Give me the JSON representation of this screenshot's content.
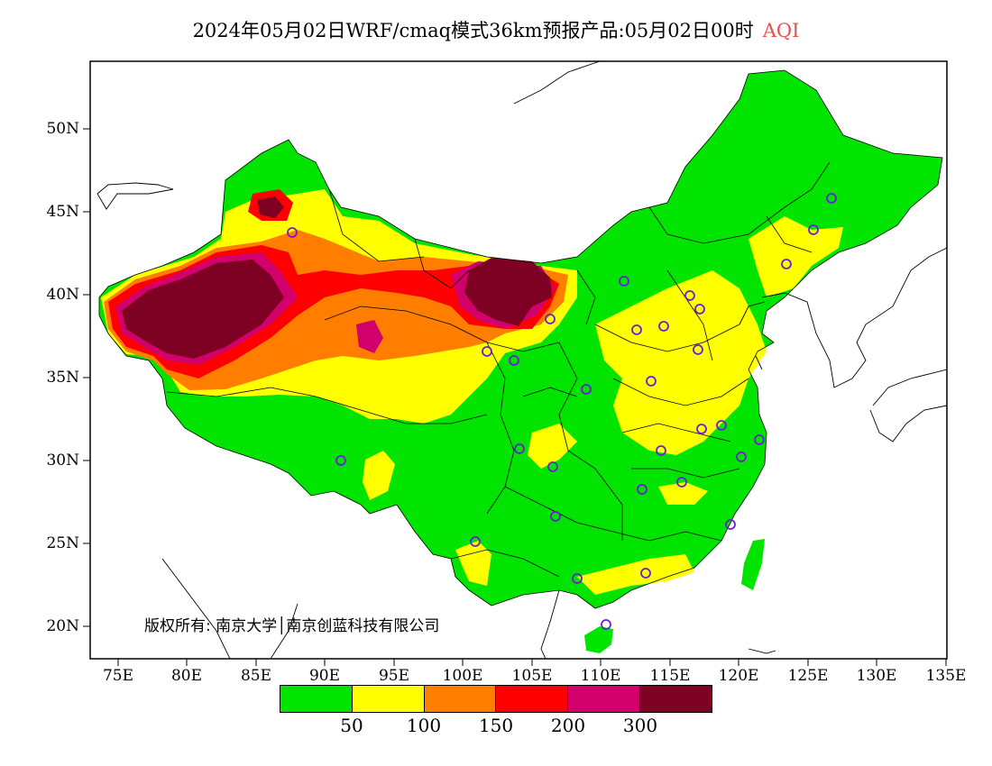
{
  "title": {
    "main": "2024年05月02日WRF/cmaq模式36km预报产品:05月02日00时",
    "variable": "AQI"
  },
  "axes": {
    "lat_ticks": [
      "50N",
      "45N",
      "40N",
      "35N",
      "30N",
      "25N",
      "20N"
    ],
    "lon_ticks": [
      "75E",
      "80E",
      "85E",
      "90E",
      "95E",
      "100E",
      "105E",
      "110E",
      "115E",
      "120E",
      "125E",
      "130E",
      "135E"
    ]
  },
  "copyright": "版权所有: 南京大学│南京创蓝科技有限公司",
  "legend": {
    "thresholds": [
      "50",
      "100",
      "150",
      "200",
      "300"
    ],
    "colors": [
      "#00e400",
      "#ffff00",
      "#ff7e00",
      "#ff0000",
      "#d1006a",
      "#7e0023"
    ],
    "categories": [
      "0-50",
      "50-100",
      "100-150",
      "150-200",
      "200-300",
      ">300"
    ]
  },
  "stations_marker": "purple-circle-icon"
}
